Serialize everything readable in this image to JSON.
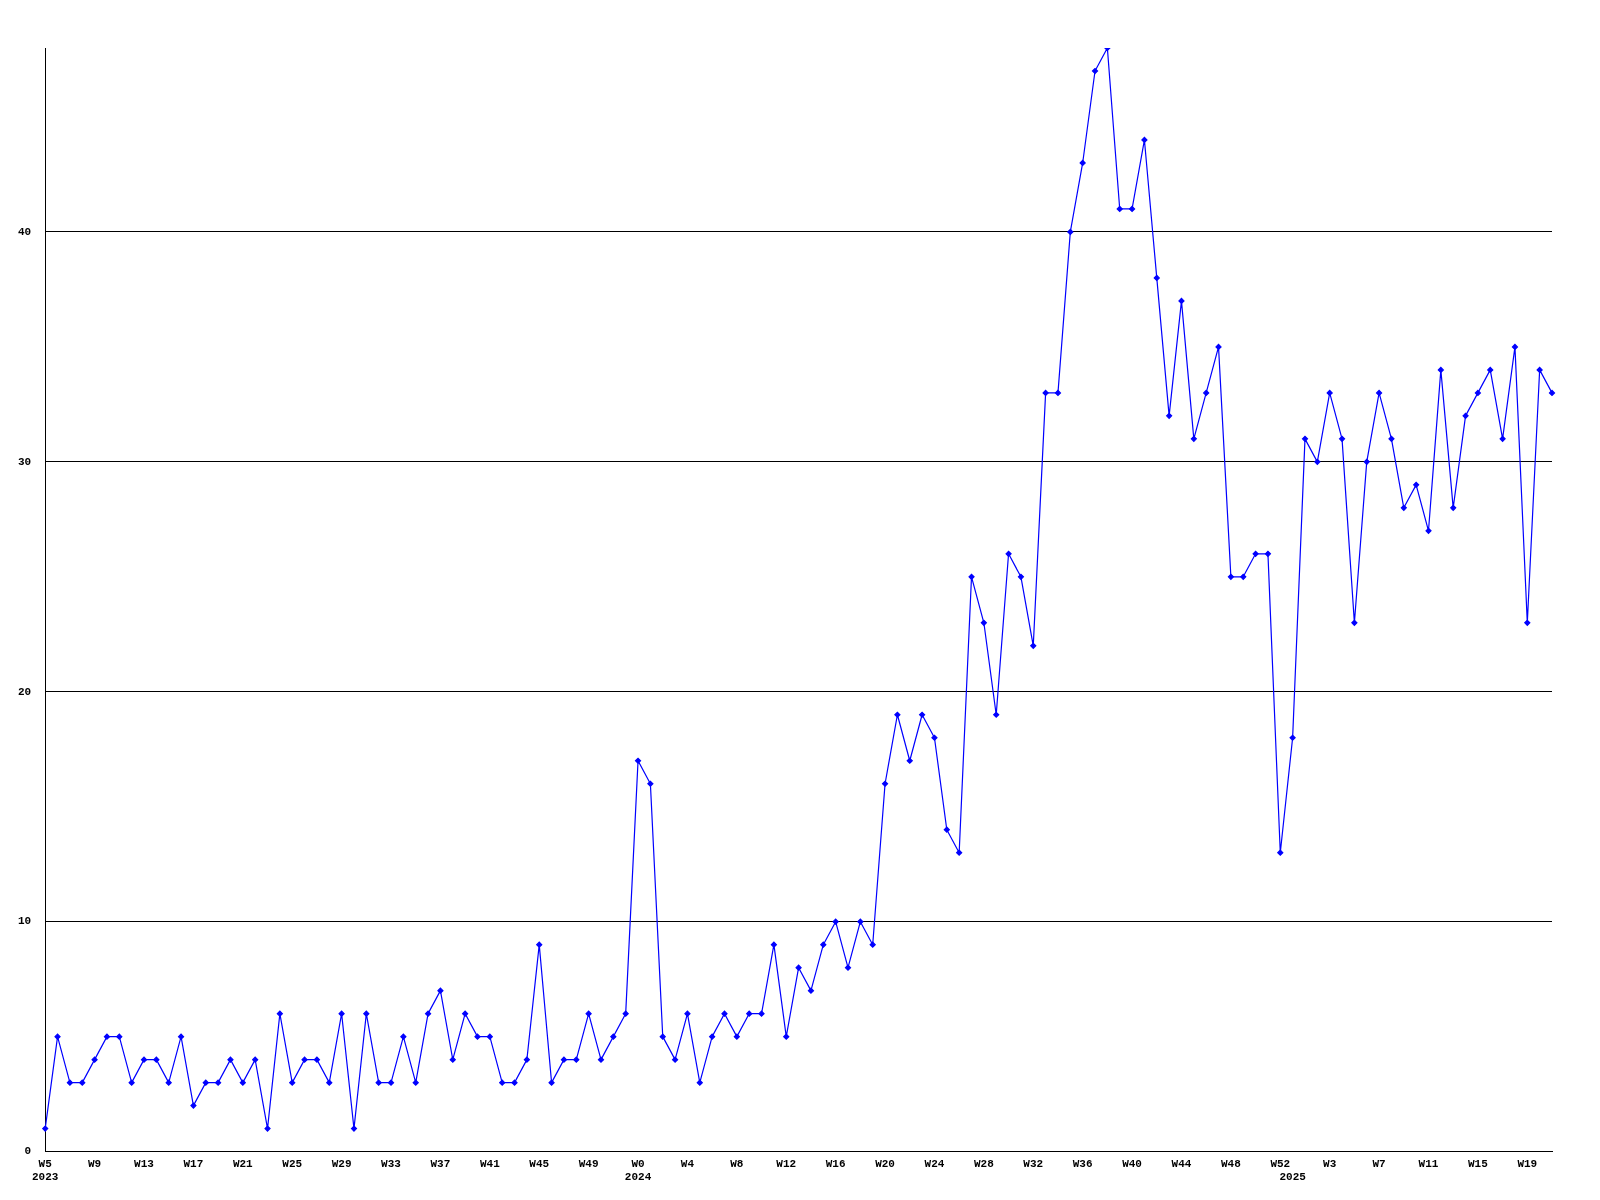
{
  "chart_data": {
    "type": "line",
    "categories": [
      "W5\n2023",
      null,
      null,
      null,
      "W9",
      null,
      null,
      null,
      "W13",
      null,
      null,
      null,
      "W17",
      null,
      null,
      null,
      "W21",
      null,
      null,
      null,
      "W25",
      null,
      null,
      null,
      "W29",
      null,
      null,
      null,
      "W33",
      null,
      null,
      null,
      "W37",
      null,
      null,
      null,
      "W41",
      null,
      null,
      null,
      "W45",
      null,
      null,
      null,
      "W49",
      null,
      null,
      null,
      "W0\n2024",
      null,
      null,
      null,
      "W4",
      null,
      null,
      null,
      "W8",
      null,
      null,
      null,
      "W12",
      null,
      null,
      null,
      "W16",
      null,
      null,
      null,
      "W20",
      null,
      null,
      null,
      "W24",
      null,
      null,
      null,
      "W28",
      null,
      null,
      null,
      "W32",
      null,
      null,
      null,
      "W36",
      null,
      null,
      null,
      "W40",
      null,
      null,
      null,
      "W44",
      null,
      null,
      null,
      "W48",
      null,
      null,
      null,
      "W52",
      "\n2025",
      null,
      null,
      "W3",
      null,
      null,
      null,
      "W7",
      null,
      null,
      null,
      "W11",
      null,
      null,
      null,
      "W15",
      null,
      null,
      null,
      "W19",
      null,
      null
    ],
    "series": [
      {
        "color": "#0000ff",
        "values": [
          1,
          5,
          3,
          3,
          4,
          5,
          5,
          3,
          4,
          4,
          3,
          5,
          2,
          3,
          3,
          4,
          3,
          4,
          1,
          6,
          3,
          4,
          4,
          3,
          6,
          1,
          6,
          3,
          3,
          5,
          3,
          6,
          7,
          4,
          6,
          5,
          5,
          3,
          3,
          4,
          9,
          3,
          4,
          4,
          6,
          4,
          5,
          6,
          17,
          16,
          5,
          4,
          6,
          3,
          5,
          6,
          5,
          6,
          6,
          9,
          5,
          8,
          7,
          9,
          10,
          8,
          10,
          9,
          16,
          19,
          17,
          19,
          18,
          14,
          13,
          25,
          23,
          19,
          26,
          25,
          22,
          33,
          33,
          40,
          43,
          47,
          48,
          41,
          41,
          44,
          38,
          32,
          37,
          31,
          33,
          35,
          25,
          25,
          26,
          26,
          13,
          18,
          31,
          30,
          33,
          31,
          23,
          30,
          33,
          31,
          28,
          29,
          27,
          34,
          28,
          32,
          33,
          34,
          31,
          35,
          23,
          34,
          33
        ]
      }
    ],
    "ylim": [
      0,
      48
    ],
    "yticks": [
      0,
      10,
      20,
      30,
      40
    ],
    "grid": "y",
    "legend": false,
    "marker": "diamond",
    "line_style": "solid"
  }
}
